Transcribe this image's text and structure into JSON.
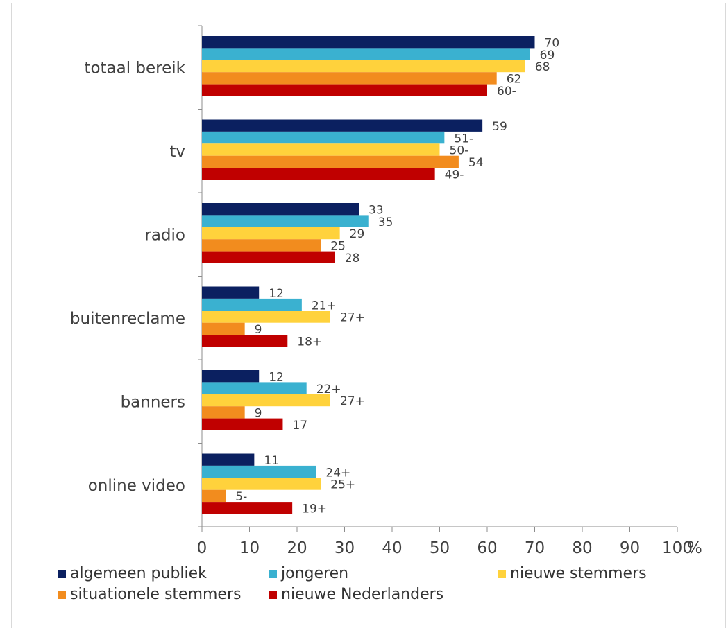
{
  "chart_data": {
    "type": "bar",
    "orientation": "horizontal",
    "categories": [
      "totaal bereik",
      "tv",
      "radio",
      "buitenreclame",
      "banners",
      "online video"
    ],
    "series": [
      {
        "name": "algemeen publiek",
        "color": "#0b2060",
        "values": [
          70,
          59,
          33,
          12,
          12,
          11
        ],
        "labels": [
          "70",
          "59",
          "33",
          "12",
          "12",
          "11"
        ]
      },
      {
        "name": "jongeren",
        "color": "#3ab1d0",
        "values": [
          69,
          51,
          35,
          21,
          22,
          24
        ],
        "labels": [
          "69",
          "51-",
          "35",
          "21+",
          "22+",
          "24+"
        ]
      },
      {
        "name": "nieuwe stemmers",
        "color": "#ffd23c",
        "values": [
          68,
          50,
          29,
          27,
          27,
          25
        ],
        "labels": [
          "68",
          "50-",
          "29",
          "27+",
          "27+",
          "25+"
        ]
      },
      {
        "name": "situationele stemmers",
        "color": "#f28c1e",
        "values": [
          62,
          54,
          25,
          9,
          9,
          5
        ],
        "labels": [
          "62",
          "54",
          "25",
          "9",
          "9",
          "5-"
        ]
      },
      {
        "name": "nieuwe Nederlanders",
        "color": "#c00000",
        "values": [
          60,
          49,
          28,
          18,
          17,
          19
        ],
        "labels": [
          "60-",
          "49-",
          "28",
          "18+",
          "17",
          "19+"
        ]
      }
    ],
    "xlim": [
      0,
      100
    ],
    "xticks": [
      "0",
      "10",
      "20",
      "30",
      "40",
      "50",
      "60",
      "70",
      "80",
      "90",
      "100"
    ],
    "unit_label": "%",
    "grid": false,
    "legend_position": "bottom"
  }
}
